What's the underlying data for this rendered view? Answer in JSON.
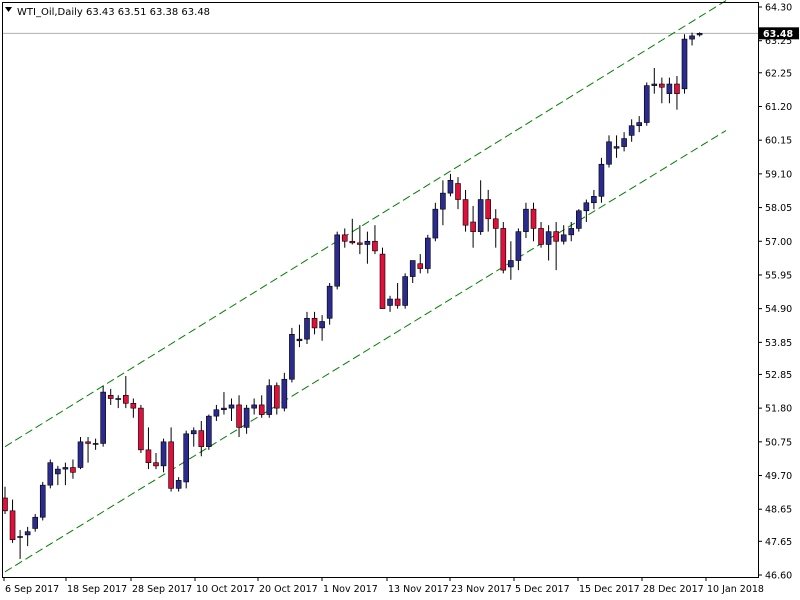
{
  "window": {
    "symbol_label": "WTI_Oil,Daily",
    "ohlc_label": "63.43 63.51 63.38 63.48",
    "current_price_label": "63.48"
  },
  "colors": {
    "background": "#ffffff",
    "frame": "#000000",
    "bull": "#2a2a8f",
    "bear": "#e0103a",
    "channel": "#008000",
    "price_tag_bg": "#000000",
    "price_line": "#b0b0b0"
  },
  "chart_data": {
    "type": "candlestick",
    "title": "WTI_Oil,Daily",
    "y_ticks": [
      "64.30",
      "63.25",
      "62.25",
      "61.20",
      "60.15",
      "59.10",
      "58.05",
      "57.00",
      "55.95",
      "54.90",
      "53.85",
      "52.85",
      "51.80",
      "50.75",
      "49.70",
      "48.65",
      "47.65",
      "46.60"
    ],
    "ylim": [
      46.6,
      64.3
    ],
    "x_labels": [
      "6 Sep 2017",
      "18 Sep 2017",
      "28 Sep 2017",
      "10 Oct 2017",
      "20 Oct 2017",
      "1 Nov 2017",
      "13 Nov 2017",
      "23 Nov 2017",
      "5 Dec 2017",
      "15 Dec 2017",
      "28 Dec 2017",
      "10 Jan 2018"
    ],
    "last_price": 63.48,
    "channel_lines": [
      {
        "name": "upper",
        "from": [
          0,
          50.6
        ],
        "to": [
          95.5,
          64.5
        ]
      },
      {
        "name": "lower",
        "from": [
          0,
          46.7
        ],
        "to": [
          95.5,
          60.45
        ]
      }
    ],
    "candles": [
      [
        49.0,
        49.35,
        48.5,
        48.6
      ],
      [
        48.6,
        48.95,
        47.6,
        47.7
      ],
      [
        47.8,
        48.0,
        47.1,
        47.8
      ],
      [
        47.85,
        48.1,
        47.5,
        47.95
      ],
      [
        48.05,
        48.5,
        47.95,
        48.4
      ],
      [
        48.4,
        49.5,
        48.3,
        49.4
      ],
      [
        49.4,
        50.2,
        49.3,
        50.1
      ],
      [
        49.75,
        50.0,
        49.4,
        49.9
      ],
      [
        49.9,
        50.1,
        49.4,
        49.95
      ],
      [
        49.95,
        50.2,
        49.6,
        49.8
      ],
      [
        49.95,
        50.9,
        49.9,
        50.75
      ],
      [
        50.75,
        50.9,
        50.1,
        50.7
      ],
      [
        50.7,
        50.85,
        50.5,
        50.7
      ],
      [
        50.7,
        52.5,
        50.6,
        52.3
      ],
      [
        52.2,
        52.4,
        51.9,
        52.1
      ],
      [
        52.1,
        52.2,
        51.8,
        52.1
      ],
      [
        52.2,
        52.8,
        51.8,
        51.95
      ],
      [
        51.95,
        52.1,
        51.5,
        51.8
      ],
      [
        51.8,
        51.9,
        50.4,
        50.5
      ],
      [
        50.5,
        51.2,
        49.9,
        50.1
      ],
      [
        50.1,
        50.4,
        49.9,
        50.0
      ],
      [
        50.0,
        50.85,
        49.8,
        50.75
      ],
      [
        50.75,
        51.2,
        49.2,
        49.3
      ],
      [
        49.3,
        49.65,
        49.2,
        49.55
      ],
      [
        49.5,
        51.1,
        49.3,
        51.0
      ],
      [
        51.0,
        51.2,
        50.6,
        51.1
      ],
      [
        51.1,
        51.4,
        50.3,
        50.6
      ],
      [
        50.6,
        51.6,
        50.5,
        51.55
      ],
      [
        51.55,
        51.9,
        51.4,
        51.75
      ],
      [
        51.75,
        52.3,
        51.6,
        51.8
      ],
      [
        51.8,
        52.1,
        51.4,
        51.9
      ],
      [
        51.9,
        52.2,
        50.9,
        51.2
      ],
      [
        51.2,
        51.9,
        51.0,
        51.8
      ],
      [
        51.8,
        52.1,
        51.6,
        51.9
      ],
      [
        51.9,
        52.2,
        51.5,
        51.6
      ],
      [
        51.6,
        52.7,
        51.5,
        52.5
      ],
      [
        52.5,
        52.6,
        51.6,
        51.8
      ],
      [
        51.8,
        52.9,
        51.7,
        52.7
      ],
      [
        52.7,
        54.3,
        52.6,
        54.1
      ],
      [
        53.9,
        54.4,
        53.7,
        53.95
      ],
      [
        53.95,
        54.8,
        53.8,
        54.6
      ],
      [
        54.6,
        54.8,
        54.1,
        54.3
      ],
      [
        54.3,
        54.7,
        53.9,
        54.5
      ],
      [
        54.6,
        55.7,
        54.4,
        55.6
      ],
      [
        55.6,
        57.3,
        55.5,
        57.2
      ],
      [
        57.2,
        57.4,
        56.8,
        57.0
      ],
      [
        57.0,
        57.7,
        56.9,
        56.95
      ],
      [
        56.95,
        57.5,
        56.6,
        56.9
      ],
      [
        56.9,
        57.3,
        56.3,
        57.0
      ],
      [
        57.0,
        57.5,
        56.6,
        56.7
      ],
      [
        56.6,
        56.8,
        54.9,
        54.9
      ],
      [
        55.0,
        55.3,
        54.8,
        55.2
      ],
      [
        55.2,
        55.7,
        54.9,
        55.0
      ],
      [
        55.0,
        56.0,
        54.9,
        55.9
      ],
      [
        55.9,
        56.4,
        55.7,
        56.4
      ],
      [
        56.3,
        56.6,
        56.0,
        56.15
      ],
      [
        56.15,
        57.2,
        56.0,
        57.1
      ],
      [
        57.1,
        58.2,
        57.0,
        58.0
      ],
      [
        58.0,
        58.9,
        57.5,
        58.5
      ],
      [
        58.5,
        59.1,
        58.4,
        58.9
      ],
      [
        58.8,
        59.0,
        58.0,
        58.3
      ],
      [
        58.3,
        58.6,
        57.3,
        57.5
      ],
      [
        57.6,
        58.1,
        56.8,
        57.3
      ],
      [
        57.3,
        58.9,
        57.2,
        58.3
      ],
      [
        58.3,
        58.6,
        57.3,
        57.7
      ],
      [
        57.7,
        58.0,
        56.8,
        57.4
      ],
      [
        57.4,
        57.6,
        56.0,
        56.1
      ],
      [
        56.2,
        57.0,
        55.8,
        56.4
      ],
      [
        56.4,
        57.4,
        56.1,
        57.3
      ],
      [
        57.3,
        58.2,
        57.1,
        58.0
      ],
      [
        58.0,
        58.2,
        57.0,
        57.4
      ],
      [
        57.4,
        57.6,
        56.8,
        56.9
      ],
      [
        56.9,
        57.5,
        56.4,
        57.3
      ],
      [
        57.3,
        57.6,
        56.1,
        57.0
      ],
      [
        57.0,
        57.5,
        56.9,
        57.2
      ],
      [
        57.2,
        57.6,
        57.0,
        57.4
      ],
      [
        57.4,
        58.0,
        57.3,
        57.95
      ],
      [
        57.95,
        58.3,
        57.6,
        58.2
      ],
      [
        58.2,
        58.6,
        58.0,
        58.4
      ],
      [
        58.4,
        59.6,
        58.2,
        59.4
      ],
      [
        59.4,
        60.3,
        59.3,
        60.1
      ],
      [
        59.9,
        60.3,
        59.6,
        59.95
      ],
      [
        59.95,
        60.4,
        59.8,
        60.2
      ],
      [
        60.3,
        60.8,
        60.1,
        60.6
      ],
      [
        60.6,
        60.9,
        60.4,
        60.7
      ],
      [
        60.7,
        61.95,
        60.6,
        61.85
      ],
      [
        61.85,
        62.4,
        61.6,
        61.9
      ],
      [
        61.9,
        62.1,
        61.3,
        61.8
      ],
      [
        61.6,
        62.1,
        61.3,
        61.9
      ],
      [
        61.9,
        62.15,
        61.1,
        61.6
      ],
      [
        61.75,
        63.45,
        61.6,
        63.3
      ],
      [
        63.3,
        63.5,
        63.1,
        63.4
      ],
      [
        63.43,
        63.51,
        63.38,
        63.48
      ]
    ]
  }
}
